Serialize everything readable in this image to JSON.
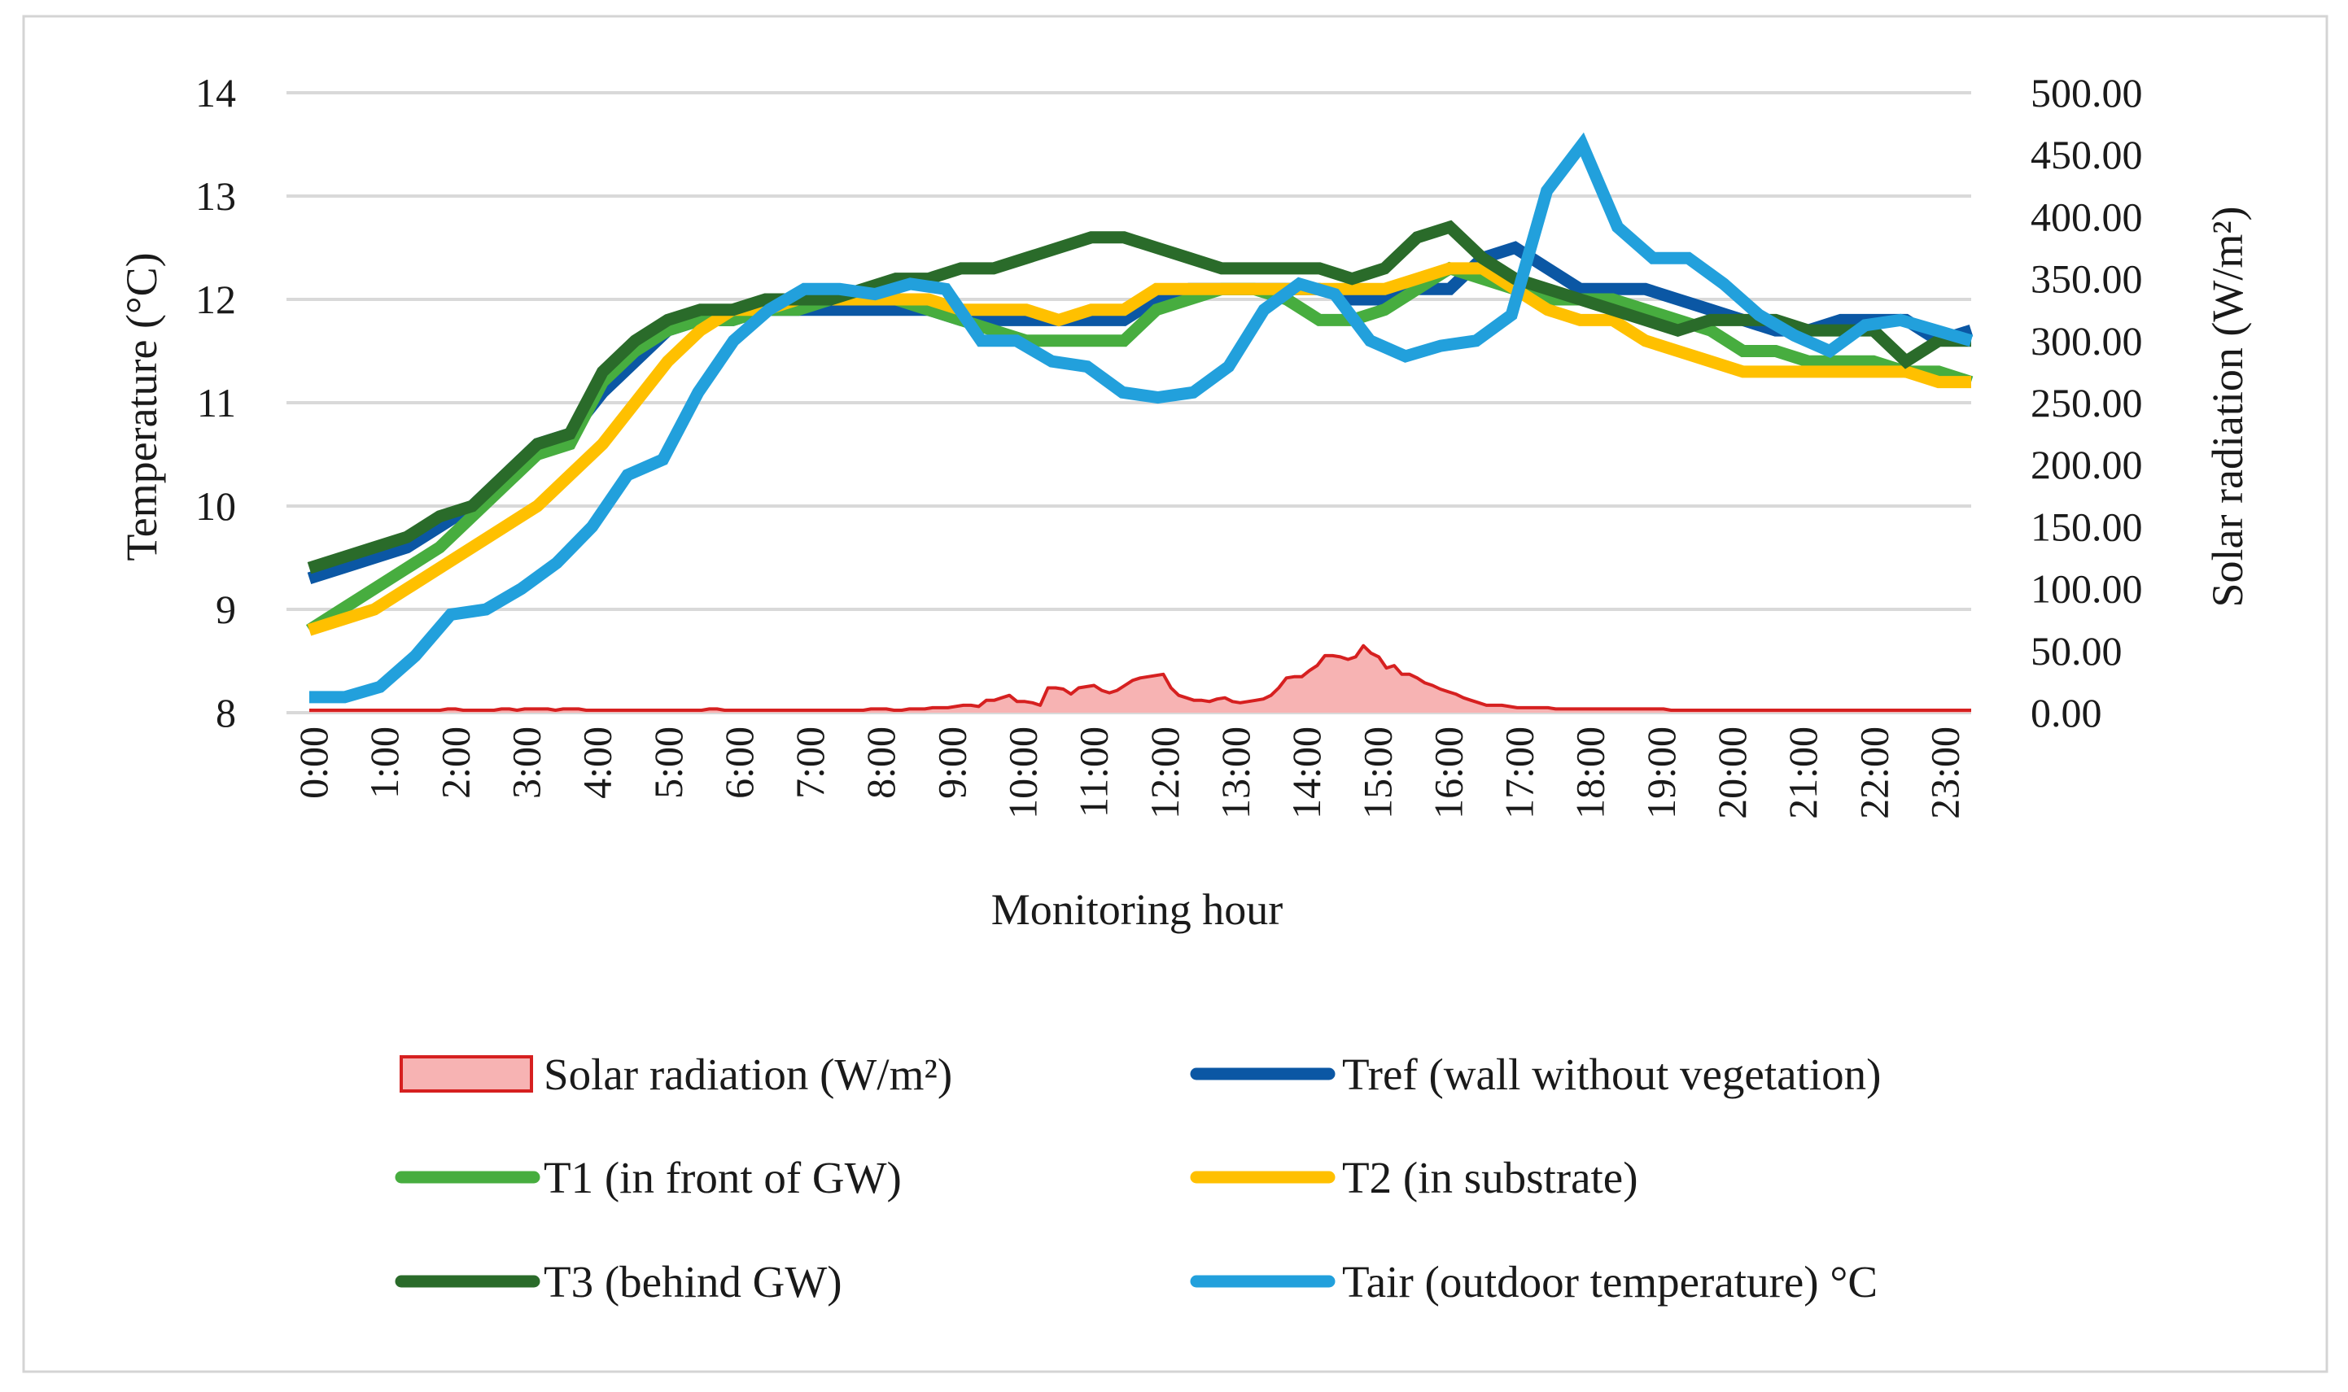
{
  "chart_data": {
    "type": "line",
    "title": "",
    "xlabel": "Monitoring hour",
    "ylabel": "Temperature (°C)",
    "y2label": "Solar radiation (W/m²)",
    "ylim": [
      8,
      14
    ],
    "y2lim": [
      0,
      500
    ],
    "yticks": [
      "8",
      "9",
      "10",
      "11",
      "12",
      "13",
      "14"
    ],
    "y2ticks": [
      "0.00",
      "50.00",
      "100.00",
      "150.00",
      "200.00",
      "250.00",
      "300.00",
      "350.00",
      "400.00",
      "450.00",
      "500.00"
    ],
    "xticks": [
      "0:00",
      "1:00",
      "2:00",
      "3:00",
      "4:00",
      "5:00",
      "6:00",
      "7:00",
      "8:00",
      "9:00",
      "10:00",
      "11:00",
      "12:00",
      "13:00",
      "14:00",
      "15:00",
      "16:00",
      "17:00",
      "18:00",
      "19:00",
      "20:00",
      "21:00",
      "22:00",
      "23:00"
    ],
    "grid": true,
    "legend_position": "bottom",
    "series": [
      {
        "name": "Solar radiation (W/m²)",
        "kind": "area",
        "axis": "right",
        "color": "#d62020",
        "fill": "#f7b3b3",
        "values": [
          2,
          2,
          2,
          2,
          2,
          2,
          2,
          2,
          2,
          2,
          2,
          2,
          2,
          2,
          2,
          2,
          2,
          2,
          3,
          3,
          2,
          2,
          2,
          2,
          2,
          3,
          3,
          2,
          3,
          3,
          3,
          3,
          2,
          3,
          3,
          3,
          2,
          2,
          2,
          2,
          2,
          2,
          2,
          2,
          2,
          2,
          2,
          2,
          2,
          2,
          2,
          2,
          3,
          3,
          2,
          2,
          2,
          2,
          2,
          2,
          2,
          2,
          2,
          2,
          2,
          2,
          2,
          2,
          2,
          2,
          2,
          2,
          2,
          3,
          3,
          3,
          2,
          2,
          3,
          3,
          3,
          4,
          4,
          4,
          5,
          6,
          6,
          5,
          10,
          10,
          12,
          14,
          9,
          9,
          8,
          6,
          20,
          20,
          19,
          15,
          20,
          21,
          22,
          18,
          16,
          18,
          22,
          26,
          28,
          29,
          30,
          31,
          20,
          14,
          12,
          10,
          10,
          9,
          11,
          12,
          9,
          8,
          9,
          10,
          11,
          14,
          20,
          28,
          29,
          29,
          34,
          38,
          46,
          46,
          45,
          43,
          45,
          54,
          48,
          45,
          36,
          38,
          31,
          31,
          28,
          24,
          22,
          19,
          17,
          15,
          12,
          10,
          8,
          6,
          6,
          6,
          5,
          4,
          4,
          4,
          4,
          4,
          3,
          3,
          3,
          3,
          3,
          3,
          3,
          3,
          3,
          3,
          3,
          3,
          3,
          3,
          3,
          2,
          2,
          2,
          2,
          2,
          2,
          2,
          2,
          2,
          2,
          2,
          2,
          2,
          2,
          2,
          2,
          2,
          2,
          2,
          2,
          2,
          2,
          2,
          2,
          2,
          2,
          2,
          2,
          2,
          2,
          2,
          2,
          2,
          2,
          2,
          2,
          2,
          2,
          2,
          2
        ]
      },
      {
        "name": "Tref (wall without vegetation)",
        "kind": "line",
        "axis": "left",
        "color": "#0b57a4",
        "values": [
          9.3,
          9.4,
          9.5,
          9.6,
          9.8,
          10.0,
          10.3,
          10.6,
          10.7,
          11.1,
          11.4,
          11.7,
          11.8,
          11.8,
          11.9,
          11.9,
          11.9,
          11.9,
          11.9,
          11.9,
          11.8,
          11.8,
          11.8,
          11.8,
          11.8,
          11.8,
          12.0,
          12.1,
          12.1,
          12.1,
          12.1,
          12.1,
          12.0,
          12.0,
          12.1,
          12.1,
          12.4,
          12.5,
          12.3,
          12.1,
          12.1,
          12.1,
          12.0,
          11.9,
          11.8,
          11.7,
          11.7,
          11.8,
          11.8,
          11.8,
          11.6,
          11.7
        ]
      },
      {
        "name": "T1 (in front of GW)",
        "kind": "line",
        "axis": "left",
        "color": "#47ad3f",
        "values": [
          8.8,
          9.0,
          9.2,
          9.4,
          9.6,
          9.9,
          10.2,
          10.5,
          10.6,
          11.2,
          11.5,
          11.7,
          11.8,
          11.8,
          11.9,
          11.9,
          12.0,
          12.0,
          12.0,
          11.9,
          11.8,
          11.7,
          11.6,
          11.6,
          11.6,
          11.6,
          11.9,
          12.0,
          12.1,
          12.1,
          12.0,
          11.8,
          11.8,
          11.9,
          12.1,
          12.3,
          12.2,
          12.1,
          12.0,
          12.0,
          12.0,
          11.9,
          11.8,
          11.7,
          11.5,
          11.5,
          11.4,
          11.4,
          11.4,
          11.3,
          11.3,
          11.2
        ]
      },
      {
        "name": "T2 (in substrate)",
        "kind": "line",
        "axis": "left",
        "color": "#ffc000",
        "values": [
          8.8,
          8.9,
          9.0,
          9.2,
          9.4,
          9.6,
          9.8,
          10.0,
          10.3,
          10.6,
          11.0,
          11.4,
          11.7,
          11.9,
          11.9,
          12.0,
          12.0,
          12.0,
          12.0,
          12.0,
          11.9,
          11.9,
          11.9,
          11.8,
          11.9,
          11.9,
          12.1,
          12.1,
          12.1,
          12.1,
          12.1,
          12.1,
          12.1,
          12.1,
          12.2,
          12.3,
          12.3,
          12.1,
          11.9,
          11.8,
          11.8,
          11.6,
          11.5,
          11.4,
          11.3,
          11.3,
          11.3,
          11.3,
          11.3,
          11.3,
          11.2,
          11.2
        ]
      },
      {
        "name": "T3 (behind GW)",
        "kind": "line",
        "axis": "left",
        "color": "#2a6b2a",
        "values": [
          9.4,
          9.5,
          9.6,
          9.7,
          9.9,
          10.0,
          10.3,
          10.6,
          10.7,
          11.3,
          11.6,
          11.8,
          11.9,
          11.9,
          12.0,
          12.0,
          12.0,
          12.1,
          12.2,
          12.2,
          12.3,
          12.3,
          12.4,
          12.5,
          12.6,
          12.6,
          12.5,
          12.4,
          12.3,
          12.3,
          12.3,
          12.3,
          12.2,
          12.3,
          12.6,
          12.7,
          12.4,
          12.2,
          12.1,
          12.0,
          11.9,
          11.8,
          11.7,
          11.8,
          11.8,
          11.8,
          11.7,
          11.7,
          11.7,
          11.4,
          11.6,
          11.6
        ]
      },
      {
        "name": "Tair (outdoor temperature) °C",
        "kind": "line",
        "axis": "left",
        "color": "#22a0dc",
        "values": [
          8.15,
          8.15,
          8.25,
          8.55,
          8.95,
          9.0,
          9.2,
          9.45,
          9.8,
          10.3,
          10.45,
          11.1,
          11.6,
          11.9,
          12.1,
          12.1,
          12.05,
          12.15,
          12.1,
          11.6,
          11.6,
          11.4,
          11.35,
          11.1,
          11.05,
          11.1,
          11.35,
          11.9,
          12.15,
          12.05,
          11.6,
          11.45,
          11.55,
          11.6,
          11.85,
          13.05,
          13.5,
          12.7,
          12.4,
          12.4,
          12.15,
          11.85,
          11.65,
          11.5,
          11.75,
          11.8,
          11.7,
          11.6
        ]
      }
    ]
  }
}
